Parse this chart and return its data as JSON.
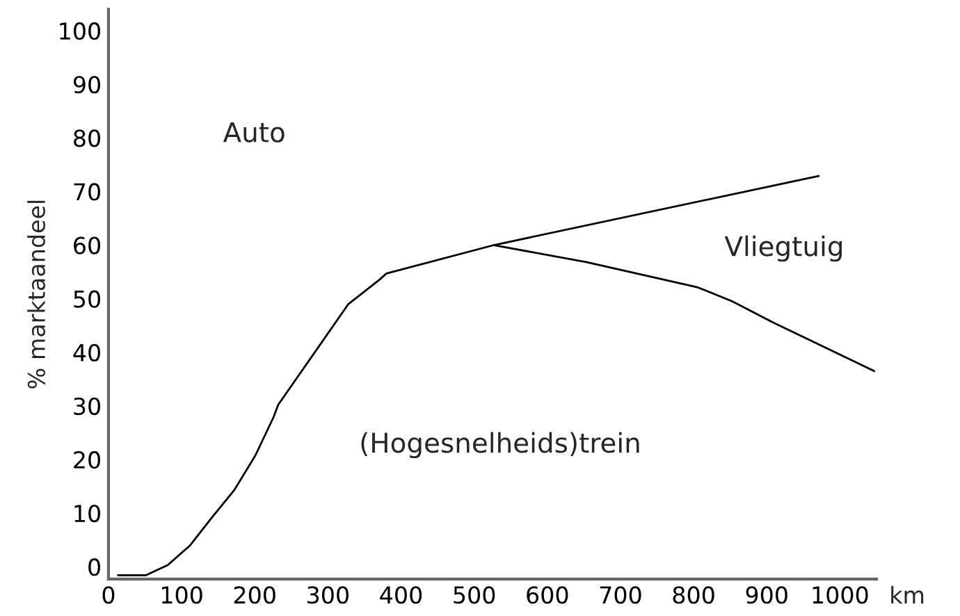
{
  "chart_data": {
    "type": "line",
    "xlabel": "km",
    "ylabel": "% marktaandeel",
    "xlim": [
      0,
      1050
    ],
    "ylim": [
      -2.3,
      104
    ],
    "xticks": [
      0,
      100,
      200,
      300,
      400,
      500,
      600,
      700,
      800,
      900,
      1000
    ],
    "yticks": [
      0,
      10,
      20,
      30,
      40,
      50,
      60,
      70,
      80,
      90,
      100
    ],
    "series": [
      {
        "color": "#000000",
        "x": [
          13,
          51,
          81,
          111,
          141,
          172,
          201,
          226,
          232,
          328,
          371,
          380,
          527,
          971
        ],
        "values": [
          -1.6,
          -1.6,
          0.3,
          3.9,
          9.1,
          14.3,
          20.8,
          28,
          30.2,
          49,
          53.6,
          54.7,
          60,
          72.9
        ]
      },
      {
        "color": "#000000",
        "x": [
          527,
          654,
          806,
          853,
          908,
          1047
        ],
        "values": [
          60,
          56.8,
          52.1,
          49.5,
          45.6,
          36.5
        ]
      }
    ],
    "annotations": [
      "Auto",
      "Vliegtuig",
      "(Hogesnelheids)trein"
    ],
    "grid": false,
    "legend": false,
    "marker": "none",
    "line_style": "solid"
  }
}
